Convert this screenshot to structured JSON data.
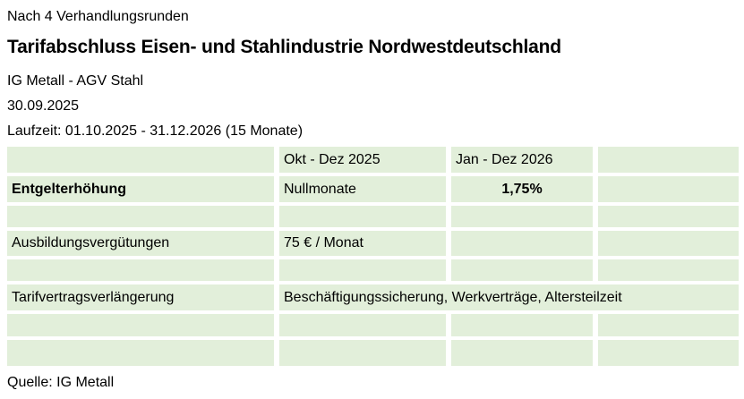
{
  "header": {
    "kicker": "Nach 4 Verhandlungsrunden",
    "title": "Tarifabschluss Eisen- und Stahlindustrie Nordwestdeutschland",
    "parties": "IG Metall - AGV Stahl",
    "date": "30.09.2025",
    "duration": "Laufzeit: 01.10.2025 - 31.12.2026 (15 Monate)"
  },
  "table": {
    "fill_color": "#e2efda",
    "column_headers": {
      "period1": "Okt - Dez 2025",
      "period2": "Jan - Dez 2026"
    },
    "rows": {
      "entgelterhoehung": {
        "label": "Entgelterhöhung",
        "period1": "Nullmonate",
        "period2": "1,75%"
      },
      "ausbildungsverguetungen": {
        "label": "Ausbildungsvergütungen",
        "period1": "75 € / Monat"
      },
      "tarifvertragsverlaengerung": {
        "label": "Tarifvertragsverlängerung",
        "value": "Beschäftigungssicherung, Werkverträge, Altersteilzeit"
      }
    }
  },
  "footer": {
    "source": "Quelle: IG Metall"
  }
}
